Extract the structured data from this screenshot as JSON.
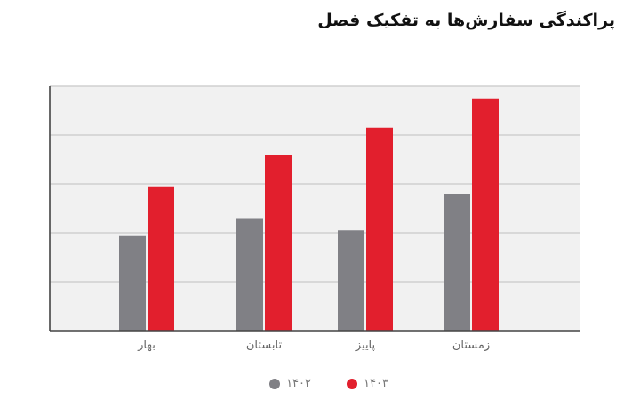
{
  "chart_data": {
    "type": "bar",
    "title": "پراکندگی سفارش‌ها به تفکیک فصل",
    "categories": [
      "بهار",
      "تابستان",
      "پاییز",
      "زمستان"
    ],
    "series": [
      {
        "name": "۱۴۰۲",
        "color": "#808085",
        "values": [
          1.95,
          2.3,
          2.05,
          2.8
        ]
      },
      {
        "name": "۱۴۰۳",
        "color": "#e21f2d",
        "values": [
          2.95,
          3.6,
          4.15,
          4.75
        ]
      }
    ],
    "ylim": [
      0,
      5
    ],
    "grid": true,
    "legend_position": "bottom-center",
    "plot_background": "#f1f1f1",
    "grid_color": "#d0d0d0",
    "xlabel": "",
    "ylabel": ""
  }
}
